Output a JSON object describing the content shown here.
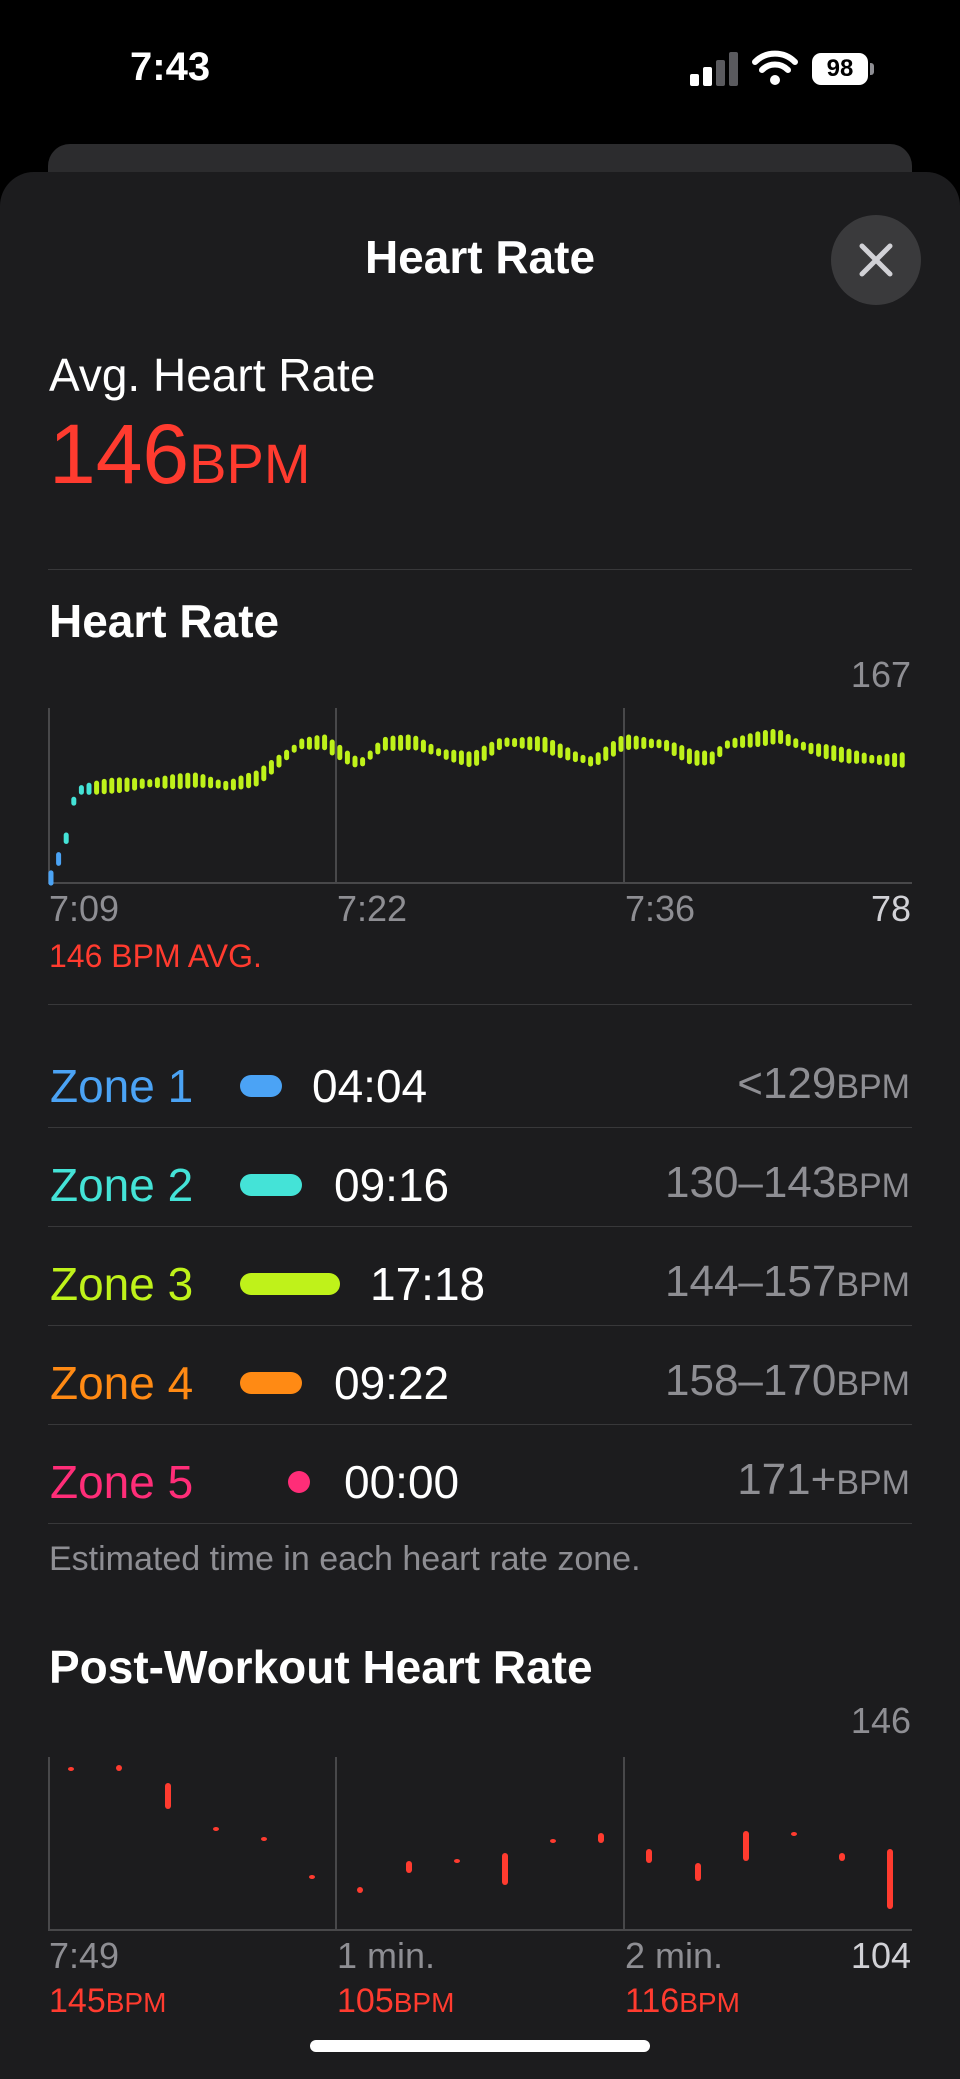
{
  "status_bar": {
    "time": "7:43",
    "battery": "98"
  },
  "header": {
    "title": "Heart Rate",
    "close_icon": "close-icon"
  },
  "summary": {
    "label": "Avg. Heart Rate",
    "value": "146",
    "unit": "BPM"
  },
  "hr_chart": {
    "title": "Heart Rate",
    "y_max_label": "167",
    "y_min_label": "78",
    "x_labels": [
      "7:09",
      "7:22",
      "7:36"
    ],
    "avg_caption": "146 BPM AVG."
  },
  "zones": {
    "rows": [
      {
        "name": "Zone 1",
        "time": "04:04",
        "range": "<129",
        "unit": "BPM",
        "color": "#4ba3f5"
      },
      {
        "name": "Zone 2",
        "time": "09:16",
        "range": "130–143",
        "unit": "BPM",
        "color": "#44e3d7"
      },
      {
        "name": "Zone 3",
        "time": "17:18",
        "range": "144–157",
        "unit": "BPM",
        "color": "#bff21a"
      },
      {
        "name": "Zone 4",
        "time": "09:22",
        "range": "158–170",
        "unit": "BPM",
        "color": "#ff8a14"
      },
      {
        "name": "Zone 5",
        "time": "00:00",
        "range": "171+",
        "unit": "BPM",
        "color": "#ff2d78"
      }
    ],
    "footnote": "Estimated time in each heart rate zone."
  },
  "post_chart": {
    "title": "Post-Workout Heart Rate",
    "y_max_label": "146",
    "y_min_label": "104",
    "x_labels": [
      "7:49",
      "1 min.",
      "2 min."
    ],
    "readings": [
      {
        "value": "145",
        "unit": "BPM"
      },
      {
        "value": "105",
        "unit": "BPM"
      },
      {
        "value": "116",
        "unit": "BPM"
      }
    ]
  }
}
